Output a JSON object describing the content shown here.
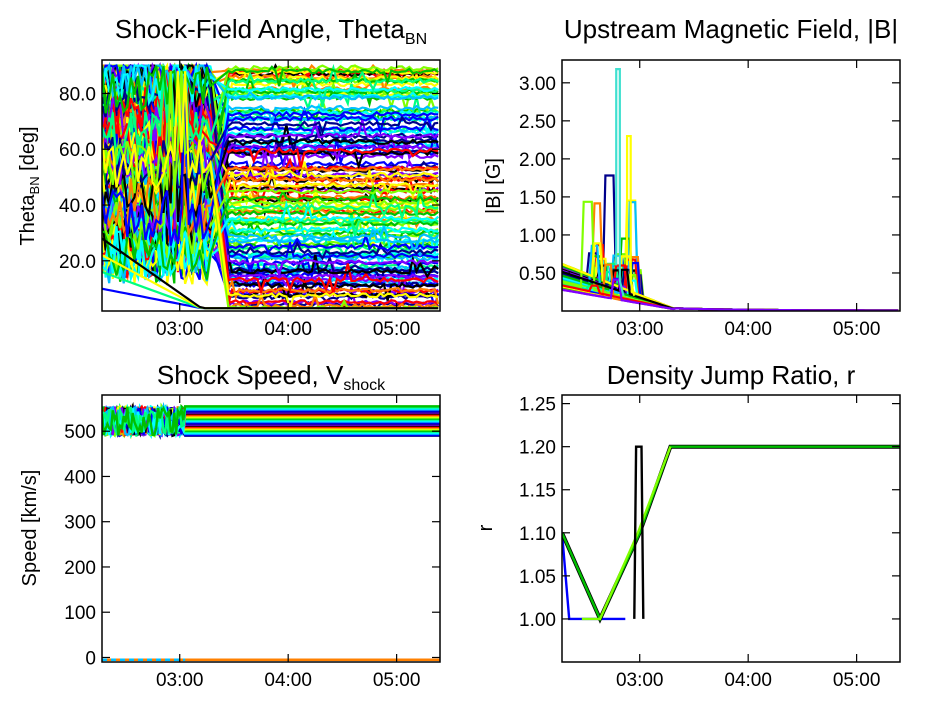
{
  "chart_data": [
    {
      "type": "line",
      "title": "Shock-Field Angle, Theta",
      "title_sub": "BN",
      "ylabel": "Theta",
      "ylabel_sub": "BN",
      "ylabel_unit": " [deg]",
      "xlim": [
        "02:17",
        "05:24"
      ],
      "ylim": [
        2,
        92
      ],
      "x_ticks": [
        "03:00",
        "04:00",
        "05:00"
      ],
      "y_ticks": [
        20.0,
        40.0,
        60.0,
        80.0
      ],
      "y_tick_labels": [
        "20.0",
        "40.0",
        "60.0",
        "80.0"
      ],
      "colormap": [
        "#00008b",
        "#0000ff",
        "#00bfff",
        "#00ffff",
        "#00ff80",
        "#00c000",
        "#80ff00",
        "#ffff00",
        "#ff8000",
        "#ff0000",
        "#000000",
        "#8000ff"
      ],
      "series_summary": {
        "count": "many (ensemble of field lines)",
        "transition_time": "03:25",
        "final_levels": [
          4,
          8,
          12,
          15,
          18,
          22,
          26,
          30,
          34,
          38,
          42,
          46,
          50,
          54,
          58,
          62,
          66,
          70,
          74,
          78,
          82,
          86,
          88
        ]
      }
    },
    {
      "type": "line",
      "title": "Upstream Magnetic Field, |B|",
      "ylabel": "|B| [G]",
      "xlim": [
        "02:17",
        "05:24"
      ],
      "ylim": [
        0,
        3.3
      ],
      "x_ticks": [
        "03:00",
        "04:00",
        "05:00"
      ],
      "y_ticks": [
        0.5,
        1.0,
        1.5,
        2.0,
        2.5,
        3.0
      ],
      "y_tick_labels": [
        "0.50",
        "1.00",
        "1.50",
        "2.00",
        "2.50",
        "3.00"
      ],
      "series_summary": {
        "peak_value": 3.18,
        "peak_time": "02:49",
        "secondary_peak": 2.3,
        "decay_to_zero_by": "03:20"
      }
    },
    {
      "type": "line",
      "title": "Shock Speed, V",
      "title_sub": "shock",
      "ylabel": "Speed [km/s]",
      "xlim": [
        "02:17",
        "05:24"
      ],
      "ylim": [
        -10,
        580
      ],
      "x_ticks": [
        "03:00",
        "04:00",
        "05:00"
      ],
      "y_ticks": [
        0,
        100,
        200,
        300,
        400,
        500
      ],
      "y_tick_labels": [
        "0",
        "100",
        "200",
        "300",
        "400",
        "500"
      ],
      "series_summary": {
        "upper_band_range": [
          490,
          555
        ],
        "lower_value": -5,
        "noisy_until": "03:03"
      }
    },
    {
      "type": "line",
      "title": "Density Jump Ratio, r",
      "ylabel": "r",
      "xlim": [
        "02:17",
        "05:24"
      ],
      "ylim": [
        0.95,
        1.26
      ],
      "x_ticks": [
        "03:00",
        "04:00",
        "05:00"
      ],
      "y_ticks": [
        1.0,
        1.05,
        1.1,
        1.15,
        1.2,
        1.25
      ],
      "y_tick_labels": [
        "1.00",
        "1.05",
        "1.10",
        "1.15",
        "1.20",
        "1.25"
      ],
      "series": [
        {
          "x": [
            "02:17",
            "02:21",
            "02:52"
          ],
          "y": [
            1.1,
            1.0,
            1.0
          ]
        },
        {
          "x": [
            "02:17",
            "02:38",
            "03:00",
            "03:17",
            "05:24"
          ],
          "y": [
            1.1,
            1.0,
            1.1,
            1.2,
            1.2
          ]
        },
        {
          "x": [
            "02:28",
            "02:38",
            "02:59",
            "03:17"
          ],
          "y": [
            1.0,
            1.0,
            1.1,
            1.2
          ]
        },
        {
          "x": [
            "02:57",
            "02:58",
            "03:01",
            "03:02"
          ],
          "y": [
            1.0,
            1.2,
            1.2,
            1.0
          ]
        }
      ]
    }
  ]
}
